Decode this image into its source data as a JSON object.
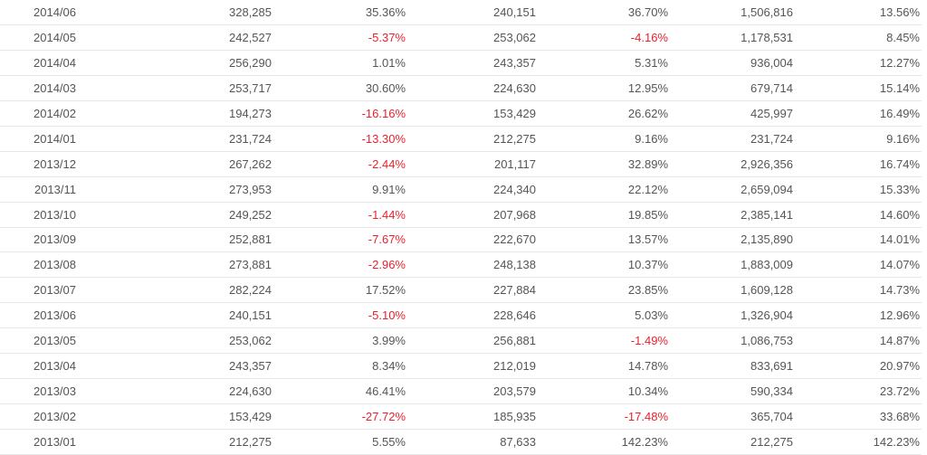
{
  "table": {
    "rows": [
      [
        "2014/06",
        "328,285",
        "35.36%",
        "240,151",
        "36.70%",
        "1,506,816",
        "13.56%"
      ],
      [
        "2014/05",
        "242,527",
        "-5.37%",
        "253,062",
        "-4.16%",
        "1,178,531",
        "8.45%"
      ],
      [
        "2014/04",
        "256,290",
        "1.01%",
        "243,357",
        "5.31%",
        "936,004",
        "12.27%"
      ],
      [
        "2014/03",
        "253,717",
        "30.60%",
        "224,630",
        "12.95%",
        "679,714",
        "15.14%"
      ],
      [
        "2014/02",
        "194,273",
        "-16.16%",
        "153,429",
        "26.62%",
        "425,997",
        "16.49%"
      ],
      [
        "2014/01",
        "231,724",
        "-13.30%",
        "212,275",
        "9.16%",
        "231,724",
        "9.16%"
      ],
      [
        "2013/12",
        "267,262",
        "-2.44%",
        "201,117",
        "32.89%",
        "2,926,356",
        "16.74%"
      ],
      [
        "2013/11",
        "273,953",
        "9.91%",
        "224,340",
        "22.12%",
        "2,659,094",
        "15.33%"
      ],
      [
        "2013/10",
        "249,252",
        "-1.44%",
        "207,968",
        "19.85%",
        "2,385,141",
        "14.60%"
      ],
      [
        "2013/09",
        "252,881",
        "-7.67%",
        "222,670",
        "13.57%",
        "2,135,890",
        "14.01%"
      ],
      [
        "2013/08",
        "273,881",
        "-2.96%",
        "248,138",
        "10.37%",
        "1,883,009",
        "14.07%"
      ],
      [
        "2013/07",
        "282,224",
        "17.52%",
        "227,884",
        "23.85%",
        "1,609,128",
        "14.73%"
      ],
      [
        "2013/06",
        "240,151",
        "-5.10%",
        "228,646",
        "5.03%",
        "1,326,904",
        "12.96%"
      ],
      [
        "2013/05",
        "253,062",
        "3.99%",
        "256,881",
        "-1.49%",
        "1,086,753",
        "14.87%"
      ],
      [
        "2013/04",
        "243,357",
        "8.34%",
        "212,019",
        "14.78%",
        "833,691",
        "20.97%"
      ],
      [
        "2013/03",
        "224,630",
        "46.41%",
        "203,579",
        "10.34%",
        "590,334",
        "23.72%"
      ],
      [
        "2013/02",
        "153,429",
        "-27.72%",
        "185,935",
        "-17.48%",
        "365,704",
        "33.68%"
      ],
      [
        "2013/01",
        "212,275",
        "5.55%",
        "87,633",
        "142.23%",
        "212,275",
        "142.23%"
      ]
    ]
  },
  "colors": {
    "text": "#555555",
    "negative": "#e8212f",
    "row_border": "#e6e6e6"
  }
}
